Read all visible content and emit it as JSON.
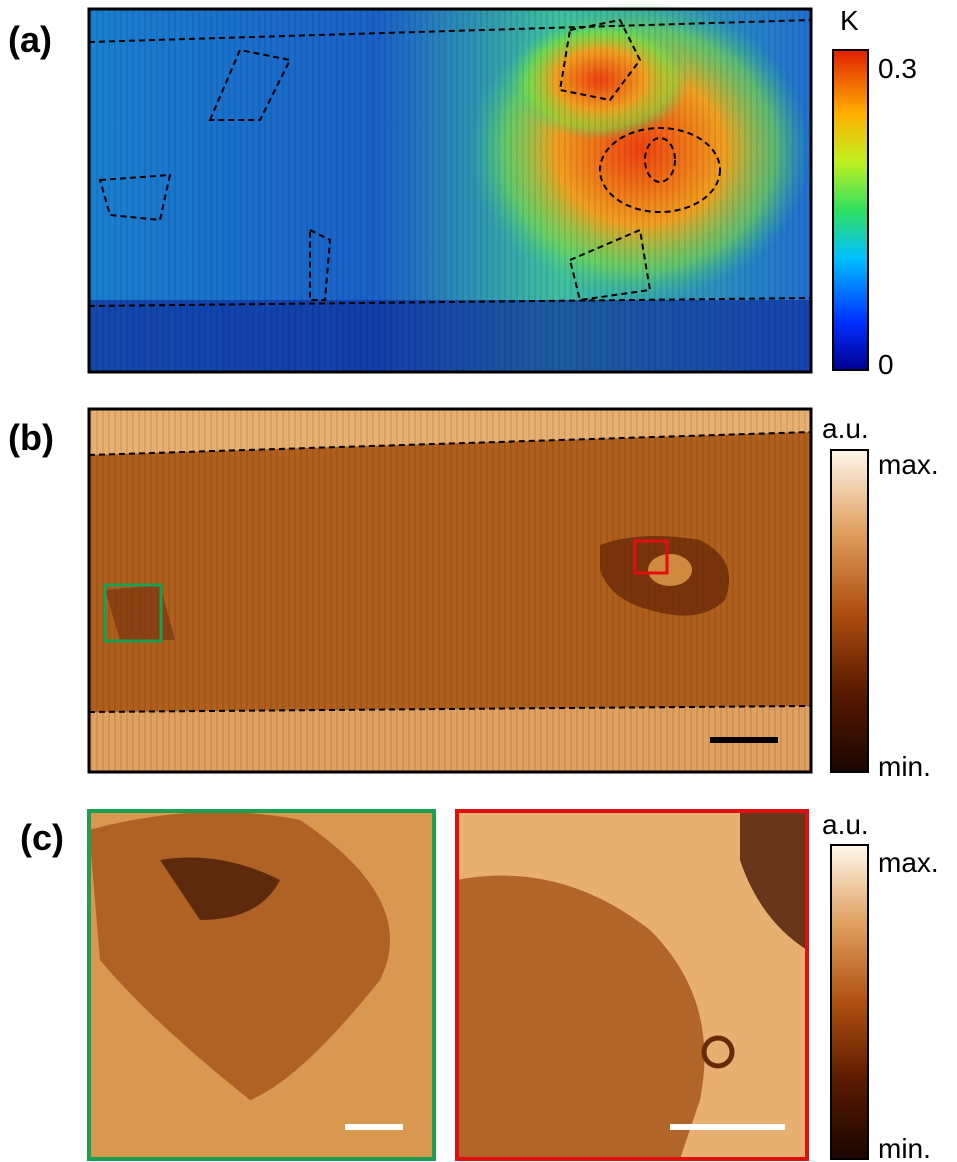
{
  "panels": [
    {
      "label": "(a)",
      "colorbar": {
        "unit": "K",
        "top": "0.3",
        "bottom": "0"
      }
    },
    {
      "label": "(b)",
      "colorbar": {
        "unit": "a.u.",
        "top": "max.",
        "bottom": "min."
      }
    },
    {
      "label": "(c)",
      "colorbar": {
        "unit": "a.u.",
        "top": "max.",
        "bottom": "min."
      }
    }
  ]
}
